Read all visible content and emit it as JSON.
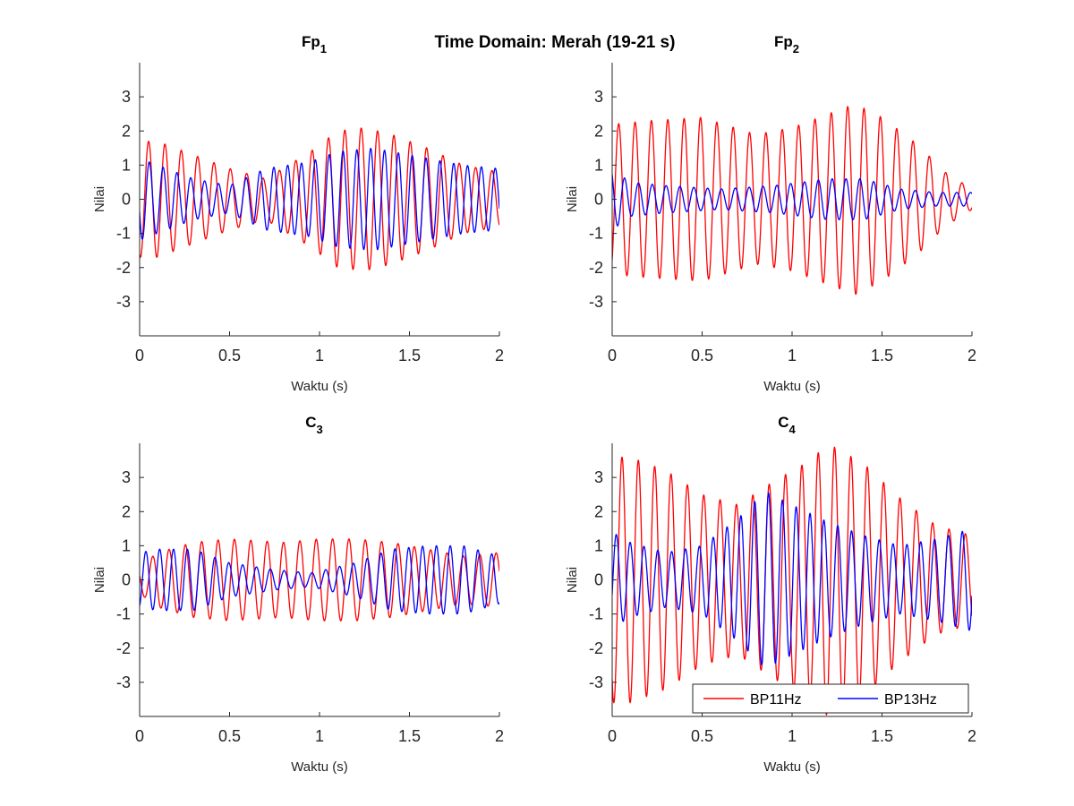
{
  "figure_title": "Time Domain: Merah (19-21 s)",
  "colors": {
    "BP11Hz": "#ff0000",
    "BP13Hz": "#0000ff",
    "axes": "#262626"
  },
  "legend": {
    "entries": [
      "BP11Hz",
      "BP13Hz"
    ],
    "location": "bottom-right of C4 panel"
  },
  "chart_data": [
    {
      "type": "line",
      "title": "Fp",
      "title_subscript": "1",
      "xlabel": "Waktu (s)",
      "ylabel": "Nilai",
      "xlim": [
        0,
        2
      ],
      "ylim": [
        -4,
        4
      ],
      "xticks": [
        0,
        0.5,
        1,
        1.5,
        2
      ],
      "xtick_labels": [
        "0",
        "0.5",
        "1",
        "1.5",
        "2"
      ],
      "yticks": [
        -3,
        -2,
        -1,
        0,
        1,
        2,
        3
      ],
      "ytick_labels": [
        "-3",
        "-2",
        "-1",
        "0",
        "1",
        "2",
        "3"
      ],
      "grid": false,
      "series": [
        {
          "name": "BP11Hz",
          "freq": 11,
          "phase": 0.45,
          "envelope": {
            "t": [
              0,
              0.1,
              0.3,
              0.5,
              0.7,
              0.95,
              1.1,
              1.25,
              1.4,
              1.6,
              1.8,
              2.0
            ],
            "a": [
              1.7,
              1.7,
              1.3,
              0.9,
              0.6,
              1.4,
              2.0,
              2.1,
              1.9,
              1.5,
              1.0,
              0.8
            ]
          }
        },
        {
          "name": "BP13Hz",
          "freq": 13,
          "phase": 0.3,
          "envelope": {
            "t": [
              0,
              0.1,
              0.3,
              0.5,
              0.7,
              0.95,
              1.1,
              1.3,
              1.5,
              1.8,
              2.0
            ],
            "a": [
              1.2,
              1.0,
              0.6,
              0.4,
              0.9,
              1.1,
              1.4,
              1.5,
              1.3,
              1.0,
              0.9
            ]
          }
        }
      ]
    },
    {
      "type": "line",
      "title": "Fp",
      "title_subscript": "2",
      "xlabel": "Waktu (s)",
      "ylabel": "Nilai",
      "xlim": [
        0,
        2
      ],
      "ylim": [
        -4,
        4
      ],
      "xticks": [
        0,
        0.5,
        1,
        1.5,
        2
      ],
      "xtick_labels": [
        "0",
        "0.5",
        "1",
        "1.5",
        "2"
      ],
      "yticks": [
        -3,
        -2,
        -1,
        0,
        1,
        2,
        3
      ],
      "ytick_labels": [
        "-3",
        "-2",
        "-1",
        "0",
        "1",
        "2",
        "3"
      ],
      "grid": false,
      "series": [
        {
          "name": "BP11Hz",
          "freq": 11,
          "phase": 0.6,
          "envelope": {
            "t": [
              0,
              0.2,
              0.5,
              0.8,
              1.0,
              1.2,
              1.35,
              1.5,
              1.7,
              1.85,
              2.0
            ],
            "a": [
              2.2,
              2.3,
              2.4,
              1.9,
              2.1,
              2.5,
              2.8,
              2.4,
              1.6,
              0.8,
              0.3
            ]
          }
        },
        {
          "name": "BP13Hz",
          "freq": 13,
          "phase": 0.1,
          "envelope": {
            "t": [
              0,
              0.1,
              0.3,
              0.6,
              0.9,
              1.2,
              1.4,
              1.6,
              1.8,
              2.0
            ],
            "a": [
              0.9,
              0.5,
              0.4,
              0.3,
              0.4,
              0.6,
              0.6,
              0.3,
              0.2,
              0.2
            ]
          }
        }
      ]
    },
    {
      "type": "line",
      "title": "C",
      "title_subscript": "3",
      "xlabel": "Waktu (s)",
      "ylabel": "Nilai",
      "xlim": [
        0,
        2
      ],
      "ylim": [
        -4,
        4
      ],
      "xticks": [
        0,
        0.5,
        1,
        1.5,
        2
      ],
      "xtick_labels": [
        "0",
        "0.5",
        "1",
        "1.5",
        "2"
      ],
      "yticks": [
        -3,
        -2,
        -1,
        0,
        1,
        2,
        3
      ],
      "ytick_labels": [
        "-3",
        "-2",
        "-1",
        "0",
        "1",
        "2",
        "3"
      ],
      "grid": false,
      "series": [
        {
          "name": "BP11Hz",
          "freq": 11,
          "phase": 0.2,
          "envelope": {
            "t": [
              0,
              0.1,
              0.3,
              0.5,
              0.8,
              1.0,
              1.2,
              1.4,
              1.6,
              1.8,
              2.0
            ],
            "a": [
              0.4,
              0.8,
              1.1,
              1.2,
              1.1,
              1.2,
              1.2,
              1.1,
              0.9,
              0.7,
              0.8
            ]
          }
        },
        {
          "name": "BP13Hz",
          "freq": 13,
          "phase": 0.55,
          "envelope": {
            "t": [
              0,
              0.1,
              0.3,
              0.5,
              0.75,
              0.95,
              1.2,
              1.4,
              1.6,
              1.8,
              2.0
            ],
            "a": [
              0.8,
              0.9,
              0.9,
              0.5,
              0.3,
              0.2,
              0.5,
              0.9,
              1.0,
              1.0,
              0.7
            ]
          }
        }
      ]
    },
    {
      "type": "line",
      "title": "C",
      "title_subscript": "4",
      "xlabel": "Waktu (s)",
      "ylabel": "Nilai",
      "xlim": [
        0,
        2
      ],
      "ylim": [
        -4,
        4
      ],
      "xticks": [
        0,
        0.5,
        1,
        1.5,
        2
      ],
      "xtick_labels": [
        "0",
        "0.5",
        "1",
        "1.5",
        "2"
      ],
      "yticks": [
        -3,
        -2,
        -1,
        0,
        1,
        2,
        3
      ],
      "ytick_labels": [
        "-3",
        "-2",
        "-1",
        "0",
        "1",
        "2",
        "3"
      ],
      "grid": false,
      "series": [
        {
          "name": "BP11Hz",
          "freq": 11,
          "phase": 0.4,
          "envelope": {
            "t": [
              0,
              0.1,
              0.3,
              0.5,
              0.7,
              0.9,
              1.1,
              1.2,
              1.4,
              1.6,
              1.8,
              2.0
            ],
            "a": [
              3.6,
              3.6,
              3.2,
              2.5,
              2.2,
              2.9,
              3.5,
              4.0,
              3.4,
              2.4,
              1.6,
              1.3
            ]
          }
        },
        {
          "name": "BP13Hz",
          "freq": 13,
          "phase": 0.7,
          "envelope": {
            "t": [
              0,
              0.1,
              0.3,
              0.5,
              0.7,
              0.85,
              1.0,
              1.2,
              1.4,
              1.6,
              1.8,
              2.0
            ],
            "a": [
              1.4,
              1.1,
              0.8,
              1.0,
              1.8,
              2.6,
              2.2,
              1.7,
              1.3,
              1.0,
              1.2,
              1.5
            ]
          }
        }
      ]
    }
  ]
}
